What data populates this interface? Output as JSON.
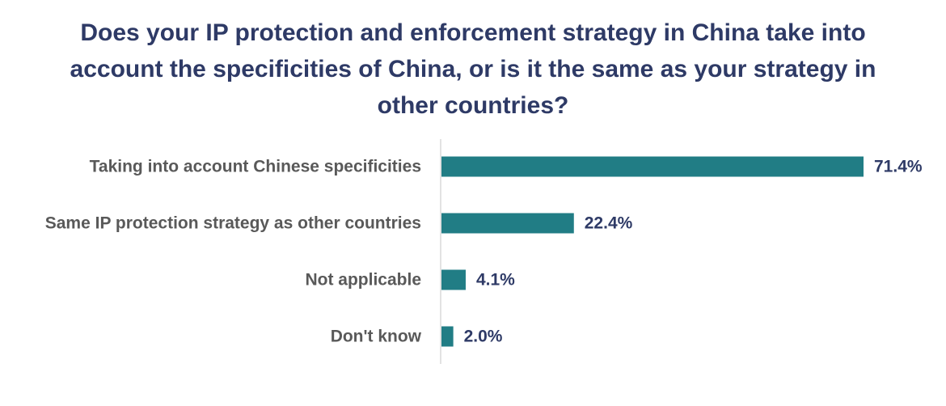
{
  "chart_data": {
    "type": "bar",
    "orientation": "horizontal",
    "title": "Does your IP protection and enforcement strategy in China take into account the specificities of China, or is it the same as your strategy in other countries?",
    "categories": [
      "Taking into account Chinese specificities",
      "Same IP protection strategy as other countries",
      "Not applicable",
      "Don't know"
    ],
    "values": [
      71.4,
      22.4,
      4.1,
      2.0
    ],
    "data_labels": [
      "71.4%",
      "22.4%",
      "4.1%",
      "2.0%"
    ],
    "xlim": [
      0,
      71.4
    ],
    "grid": false,
    "bar_color": "#217d85",
    "title_color": "#2e3a66",
    "label_color": "#595959",
    "axis_color": "#d9d9d9"
  }
}
